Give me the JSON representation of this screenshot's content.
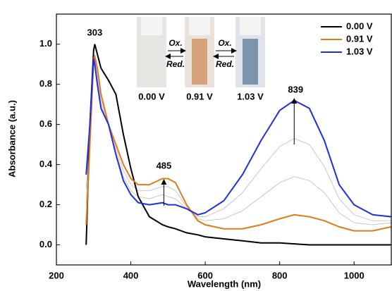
{
  "chart_data": {
    "type": "line",
    "xlabel": "Wavelength (nm)",
    "ylabel": "Absorbance (a.u.)",
    "xlim": [
      200,
      1100
    ],
    "ylim": [
      -0.1,
      1.15
    ],
    "xticks": [
      200,
      400,
      600,
      800,
      1000
    ],
    "yticks": [
      {
        "value": 0,
        "label": "0.0"
      },
      0.2,
      0.4,
      0.6,
      0.8,
      {
        "value": 1,
        "label": "1.0"
      }
    ],
    "legend": "upper right",
    "peaks": [
      303,
      485,
      839
    ],
    "x": [
      280,
      290,
      300,
      303,
      310,
      320,
      340,
      360,
      380,
      400,
      420,
      450,
      485,
      500,
      520,
      550,
      580,
      600,
      650,
      700,
      750,
      800,
      839,
      880,
      920,
      960,
      1000,
      1050,
      1100
    ],
    "series": [
      {
        "color": "#c8c8c8",
        "values": [
          0.2,
          0.55,
          0.93,
          0.93,
          0.86,
          0.72,
          0.6,
          0.48,
          0.37,
          0.3,
          0.27,
          0.27,
          0.29,
          0.29,
          0.27,
          0.19,
          0.13,
          0.12,
          0.13,
          0.17,
          0.24,
          0.31,
          0.34,
          0.32,
          0.26,
          0.16,
          0.11,
          0.1,
          0.11
        ]
      },
      {
        "color": "#c8c8c8",
        "values": [
          0.28,
          0.58,
          0.93,
          0.92,
          0.83,
          0.7,
          0.6,
          0.46,
          0.34,
          0.27,
          0.24,
          0.23,
          0.25,
          0.24,
          0.23,
          0.18,
          0.14,
          0.14,
          0.18,
          0.26,
          0.38,
          0.49,
          0.53,
          0.5,
          0.39,
          0.23,
          0.15,
          0.12,
          0.12
        ]
      },
      {
        "name": "0.00 V",
        "color": "#000000",
        "values": [
          0.0,
          0.6,
          0.97,
          1.0,
          0.95,
          0.88,
          0.82,
          0.75,
          0.55,
          0.38,
          0.24,
          0.14,
          0.1,
          0.09,
          0.08,
          0.06,
          0.05,
          0.04,
          0.03,
          0.02,
          0.01,
          0.01,
          0.005,
          0.0,
          0.0,
          0.0,
          0.0,
          0.0,
          0.0
        ]
      },
      {
        "name": "0.91 V",
        "color": "#e07b1a",
        "values": [
          0.1,
          0.5,
          0.93,
          0.94,
          0.88,
          0.75,
          0.6,
          0.5,
          0.4,
          0.33,
          0.3,
          0.3,
          0.33,
          0.33,
          0.31,
          0.2,
          0.12,
          0.1,
          0.08,
          0.08,
          0.1,
          0.13,
          0.15,
          0.14,
          0.12,
          0.09,
          0.07,
          0.07,
          0.09
        ]
      },
      {
        "name": "1.03 V",
        "color": "#1f2fe0",
        "values": [
          0.35,
          0.6,
          0.93,
          0.9,
          0.8,
          0.68,
          0.6,
          0.45,
          0.32,
          0.25,
          0.21,
          0.2,
          0.21,
          0.2,
          0.2,
          0.18,
          0.15,
          0.16,
          0.22,
          0.35,
          0.52,
          0.67,
          0.72,
          0.68,
          0.52,
          0.3,
          0.2,
          0.15,
          0.14
        ]
      }
    ],
    "inset": {
      "labels": [
        "0.00 V",
        "0.91 V",
        "1.03 V"
      ],
      "arrows": [
        {
          "top": "Ox.",
          "bottom": "Red."
        },
        {
          "top": "Ox.",
          "bottom": "Red."
        }
      ]
    }
  }
}
